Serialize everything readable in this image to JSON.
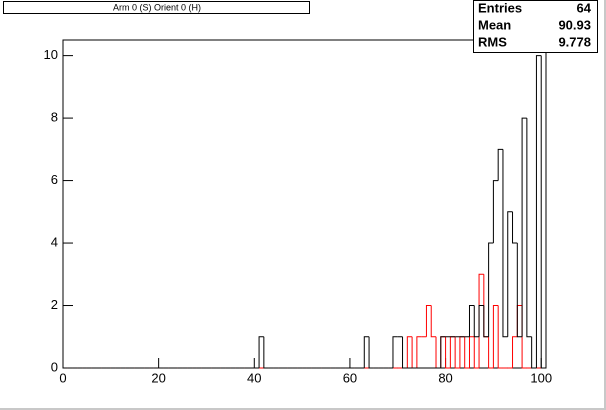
{
  "chart_data": {
    "type": "histogram",
    "title": "Arm 0 (S) Orient 0 (H)",
    "bins": [
      0,
      1,
      2,
      3,
      4,
      5,
      6,
      7,
      8,
      9,
      10,
      11,
      12,
      13,
      14,
      15,
      16,
      17,
      18,
      19,
      20,
      21,
      22,
      23,
      24,
      25,
      26,
      27,
      28,
      29,
      30,
      31,
      32,
      33,
      34,
      35,
      36,
      37,
      38,
      39,
      40,
      41,
      42,
      43,
      44,
      45,
      46,
      47,
      48,
      49,
      50,
      51,
      52,
      53,
      54,
      55,
      56,
      57,
      58,
      59,
      60,
      61,
      62,
      63,
      64,
      65,
      66,
      67,
      68,
      69,
      70,
      71,
      72,
      73,
      74,
      75,
      76,
      77,
      78,
      79,
      80,
      81,
      82,
      83,
      84,
      85,
      86,
      87,
      88,
      89,
      90,
      91,
      92,
      93,
      94,
      95,
      96,
      97,
      98,
      99,
      100,
      101
    ],
    "series": [
      {
        "color": "#ff0000",
        "values": [
          0,
          0,
          0,
          0,
          0,
          0,
          0,
          0,
          0,
          0,
          0,
          0,
          0,
          0,
          0,
          0,
          0,
          0,
          0,
          0,
          0,
          0,
          0,
          0,
          0,
          0,
          0,
          0,
          0,
          0,
          0,
          0,
          0,
          0,
          0,
          0,
          0,
          0,
          0,
          0,
          0,
          0,
          0,
          0,
          0,
          0,
          0,
          0,
          0,
          0,
          0,
          0,
          0,
          0,
          0,
          0,
          0,
          0,
          0,
          0,
          0,
          0,
          0,
          0,
          0,
          0,
          0,
          0,
          0,
          0,
          0,
          0,
          1,
          0,
          1,
          1,
          2,
          1,
          0,
          1,
          0,
          1,
          0,
          1,
          0,
          1,
          0,
          3,
          1,
          0,
          2,
          0,
          0,
          0,
          1,
          2,
          0,
          0,
          0,
          0,
          0
        ]
      },
      {
        "color": "#000000",
        "values": [
          0,
          0,
          0,
          0,
          0,
          0,
          0,
          0,
          0,
          0,
          0,
          0,
          0,
          0,
          0,
          0,
          0,
          0,
          0,
          0,
          0,
          0,
          0,
          0,
          0,
          0,
          0,
          0,
          0,
          0,
          0,
          0,
          0,
          0,
          0,
          0,
          0,
          0,
          0,
          0,
          0,
          1,
          0,
          0,
          0,
          0,
          0,
          0,
          0,
          0,
          0,
          0,
          0,
          0,
          0,
          0,
          0,
          0,
          0,
          0,
          0,
          0,
          0,
          1,
          0,
          0,
          0,
          0,
          0,
          1,
          1,
          0,
          0,
          0,
          0,
          0,
          0,
          0,
          0,
          1,
          1,
          1,
          1,
          1,
          1,
          2,
          1,
          2,
          1,
          4,
          6,
          7,
          1,
          5,
          4,
          1,
          8,
          1,
          0,
          10,
          0
        ]
      }
    ],
    "xlim": [
      0,
      101
    ],
    "xticks": [
      0,
      20,
      40,
      60,
      80,
      100
    ],
    "ylim": [
      0,
      10.5
    ],
    "yticks": [
      0,
      2,
      4,
      6,
      8,
      10
    ],
    "stats": [
      {
        "label": "Entries",
        "value": 64
      },
      {
        "label": "Mean",
        "value": 90.93
      },
      {
        "label": "RMS",
        "value": 9.778
      }
    ]
  }
}
